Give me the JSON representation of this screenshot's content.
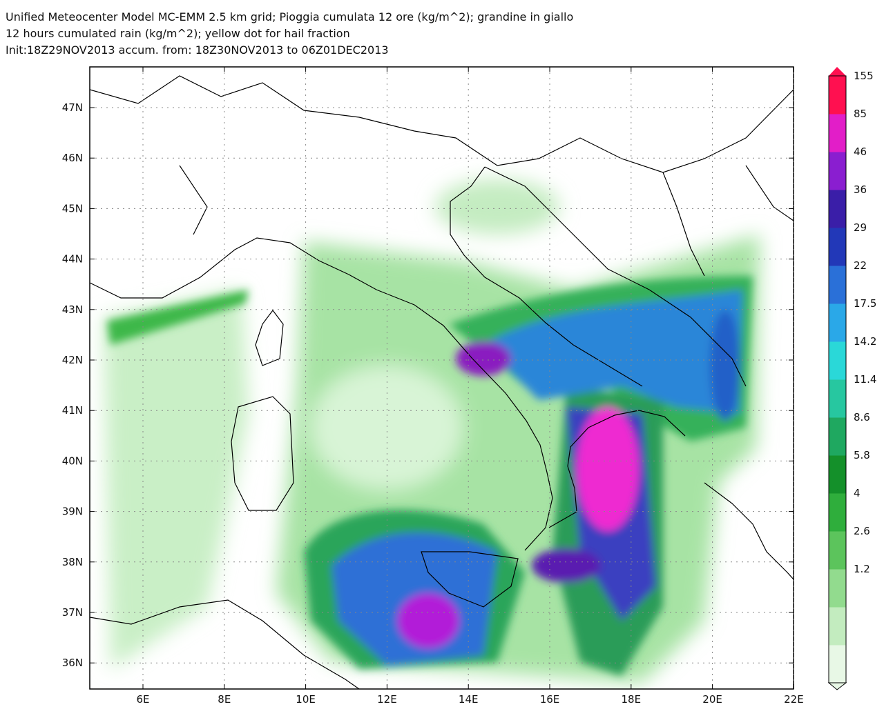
{
  "header": {
    "lines": [
      "Unified Meteocenter Model MC-EMM 2.5 km grid; Pioggia cumulata 12 ore (kg/m^2); grandine in giallo",
      "12 hours cumulated rain (kg/m^2); yellow dot for hail fraction",
      "Init:18Z29NOV2013 accum. from: 18Z30NOV2013 to 06Z01DEC2013"
    ]
  },
  "map": {
    "lat_labels": [
      "47N",
      "46N",
      "45N",
      "44N",
      "43N",
      "42N",
      "41N",
      "40N",
      "39N",
      "38N",
      "37N",
      "36N"
    ],
    "lon_labels": [
      "6E",
      "8E",
      "10E",
      "12E",
      "14E",
      "16E",
      "18E",
      "20E",
      "22E"
    ]
  },
  "colorbar": {
    "labels": [
      "155",
      "85",
      "46",
      "36",
      "29",
      "22",
      "17.5",
      "14.2",
      "11.4",
      "8.6",
      "5.8",
      "4",
      "2.6",
      "1.2"
    ]
  }
}
